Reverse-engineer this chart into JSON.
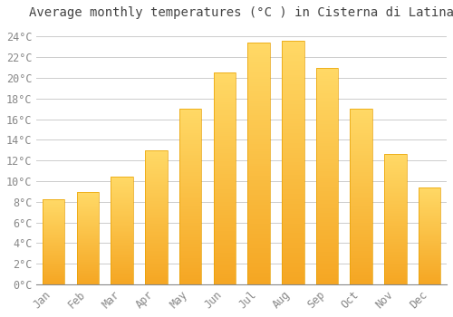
{
  "title": "Average monthly temperatures (°C ) in Cisterna di Latina",
  "months": [
    "Jan",
    "Feb",
    "Mar",
    "Apr",
    "May",
    "Jun",
    "Jul",
    "Aug",
    "Sep",
    "Oct",
    "Nov",
    "Dec"
  ],
  "temperatures": [
    8.2,
    8.9,
    10.4,
    13.0,
    17.0,
    20.5,
    23.4,
    23.6,
    21.0,
    17.0,
    12.6,
    9.4
  ],
  "bar_color_bottom": "#F5A623",
  "bar_color_top": "#FFD966",
  "bar_edge_color": "#E8A000",
  "background_color": "#FFFFFF",
  "plot_bg_color": "#FFFFFF",
  "grid_color": "#CCCCCC",
  "ylim": [
    0,
    25
  ],
  "ytick_step": 2,
  "title_fontsize": 10,
  "tick_fontsize": 8.5,
  "font_family": "monospace",
  "tick_color": "#888888",
  "title_color": "#444444"
}
